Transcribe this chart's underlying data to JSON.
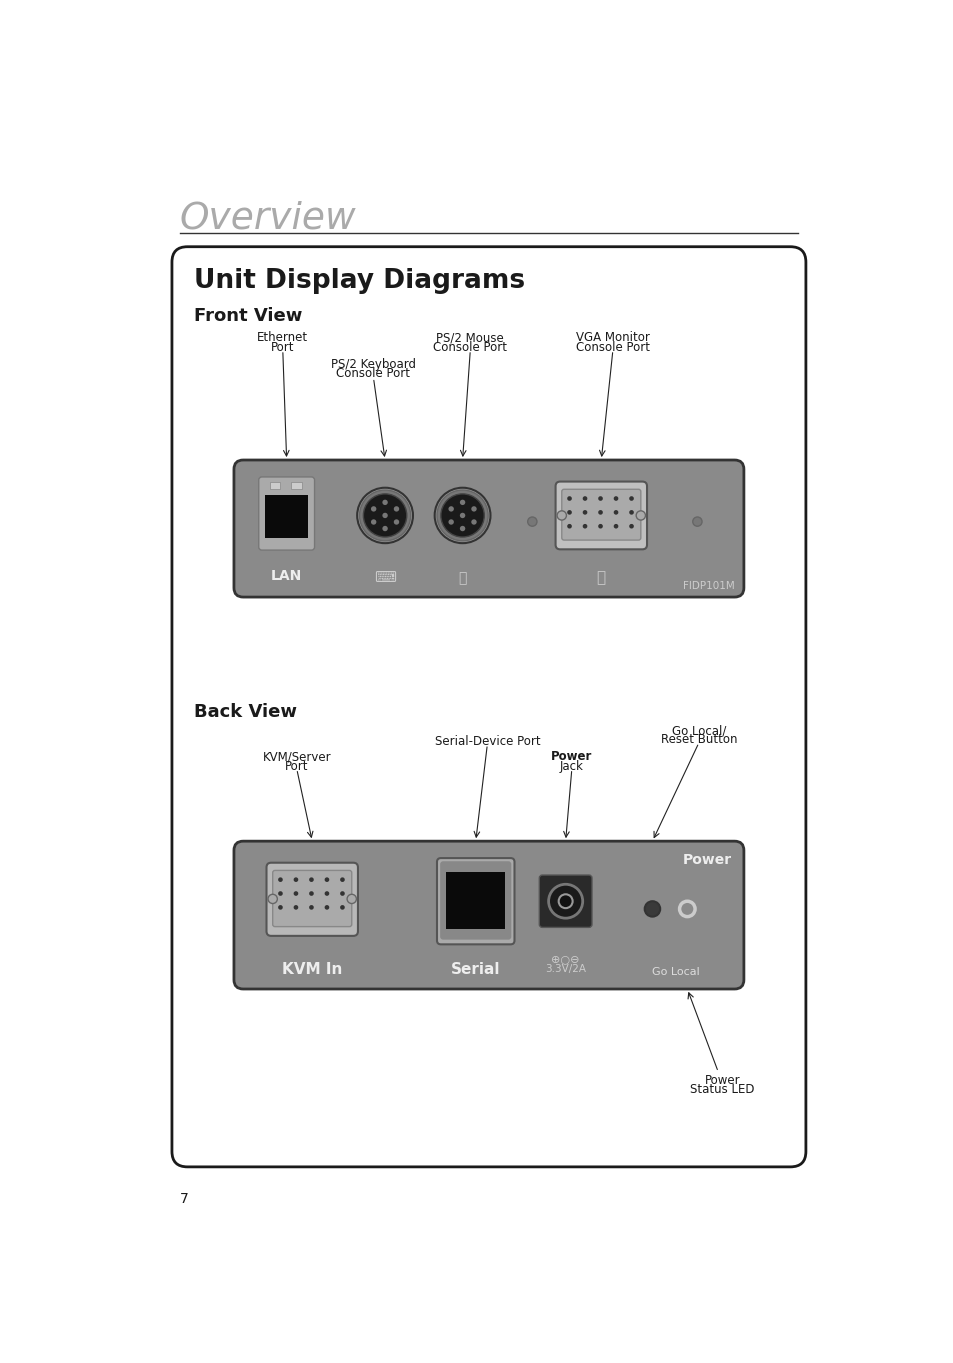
{
  "page_bg": "#ffffff",
  "title_text": "Overview",
  "title_color": "#aaaaaa",
  "box_bg": "#ffffff",
  "box_border": "#1a1a1a",
  "unit_display_title": "Unit Display Diagrams",
  "front_view_label": "Front View",
  "back_view_label": "Back View",
  "panel_color": "#8a8a8a",
  "text_color": "#1a1a1a",
  "white": "#ffffff",
  "black": "#000000",
  "page_number": "7",
  "fidp_label": "FIDP101M",
  "light_gray": "#bbbbbb",
  "dark_gray": "#444444",
  "mid_gray": "#999999",
  "near_black": "#111111",
  "annotation_color": "#222222",
  "white_label": "#dddddd"
}
